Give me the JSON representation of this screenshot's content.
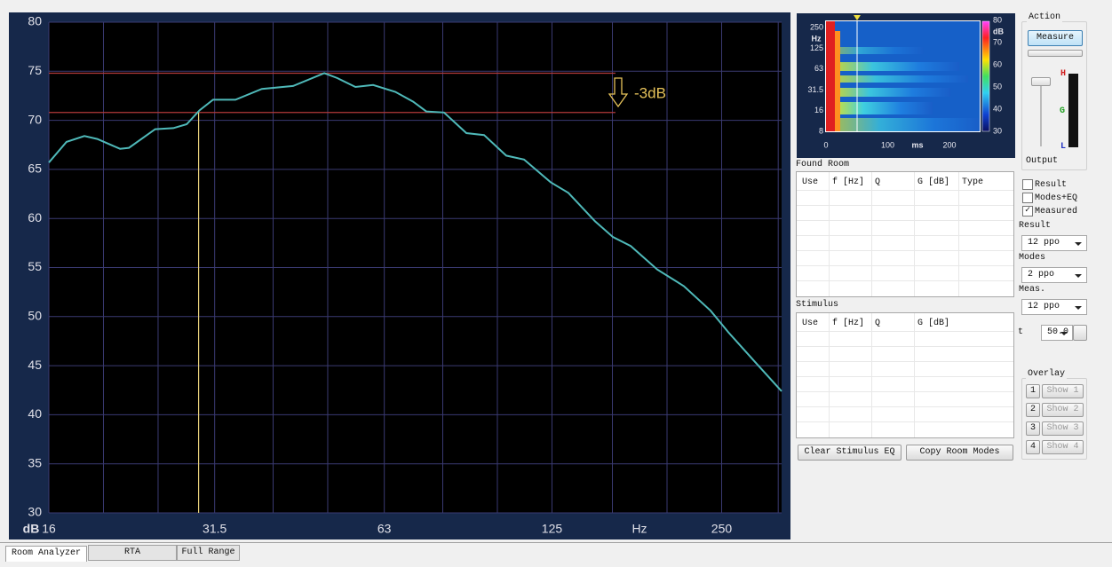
{
  "chart_data": {
    "type": "line",
    "x": [
      16,
      17.2,
      18.5,
      19.5,
      21.4,
      22.2,
      24.7,
      26.6,
      28.1,
      29.6,
      31.3,
      34.3,
      38.2,
      43.4,
      49.3,
      52.0,
      56.0,
      60.2,
      65.9,
      70.9,
      74.8,
      80.4,
      88.1,
      94.7,
      103.7,
      111.5,
      124.3,
      133.7,
      149.1,
      160.4,
      172.4,
      192.2,
      214.3,
      239.0,
      257.0,
      286.4,
      319.4
    ],
    "series": [
      {
        "color": "#4fb9b9",
        "values": [
          65.7,
          67.8,
          68.4,
          68.1,
          67.1,
          67.2,
          69.1,
          69.2,
          69.6,
          71.0,
          72.1,
          72.1,
          73.2,
          73.5,
          74.8,
          74.3,
          73.4,
          73.6,
          72.9,
          71.9,
          70.9,
          70.8,
          68.7,
          68.5,
          66.4,
          66.0,
          63.7,
          62.6,
          59.7,
          58.1,
          57.2,
          54.8,
          53.1,
          50.6,
          48.4,
          45.4,
          42.4
        ]
      }
    ],
    "xlim": [
      16,
      319.4
    ],
    "xticks": [
      16,
      31.5,
      63,
      125,
      250
    ],
    "log_x": true,
    "x_minor_grid": [
      20,
      25,
      40,
      50,
      80,
      100,
      160,
      200,
      315
    ],
    "x_unit": "Hz",
    "y_unit": "dB",
    "ylim": [
      30,
      80
    ],
    "yticks": [
      30,
      35,
      40,
      45,
      50,
      55,
      60,
      65,
      70,
      75,
      80
    ],
    "grid": true,
    "reference": {
      "hlines": [
        74.8,
        70.8
      ],
      "x_end": 162,
      "color": "#b33a3a",
      "vline": 29.5,
      "vline_top": 70.8,
      "vline_color": "#e6cf7a"
    },
    "annotation": "-3dB"
  },
  "ui": {
    "spectrogram": {
      "y_labels": [
        250,
        125,
        63,
        31.5,
        16,
        8
      ],
      "y_unit": "Hz",
      "x_labels": [
        0,
        100,
        200
      ],
      "x_unit": "ms",
      "scale_labels": [
        80,
        70,
        60,
        50,
        40,
        30
      ],
      "scale_unit": "dB"
    },
    "action": {
      "title": "Action",
      "button": "Measure",
      "meter": [
        "H",
        "G",
        "L"
      ],
      "output": "Output"
    },
    "found_room": {
      "title": "Found Room",
      "columns": [
        "Use",
        "f [Hz]",
        "Q",
        "G [dB]",
        "Type"
      ]
    },
    "stimulus": {
      "title": "Stimulus",
      "columns": [
        "Use",
        "f [Hz]",
        "Q",
        "G [dB]"
      ]
    },
    "checkboxes": [
      {
        "label": "Result",
        "checked": false
      },
      {
        "label": "Modes+EQ",
        "checked": false
      },
      {
        "label": "Measured",
        "checked": true
      }
    ],
    "selects": [
      {
        "label": "Result",
        "value": "12 ppo"
      },
      {
        "label": "Modes",
        "value": "2 ppo"
      },
      {
        "label": "Meas.",
        "value": "12 ppo"
      }
    ],
    "t": {
      "label": "t",
      "value": "50.0"
    },
    "overlay": {
      "title": "Overlay",
      "items": [
        {
          "number": "1",
          "label": "Show 1"
        },
        {
          "number": "2",
          "label": "Show 2"
        },
        {
          "number": "3",
          "label": "Show 3"
        },
        {
          "number": "4",
          "label": "Show 4"
        }
      ]
    },
    "buttons": [
      "Clear Stimulus EQ",
      "Copy Room Modes"
    ],
    "tabs": [
      "Room Analyzer",
      "RTA",
      "Full Range"
    ]
  }
}
